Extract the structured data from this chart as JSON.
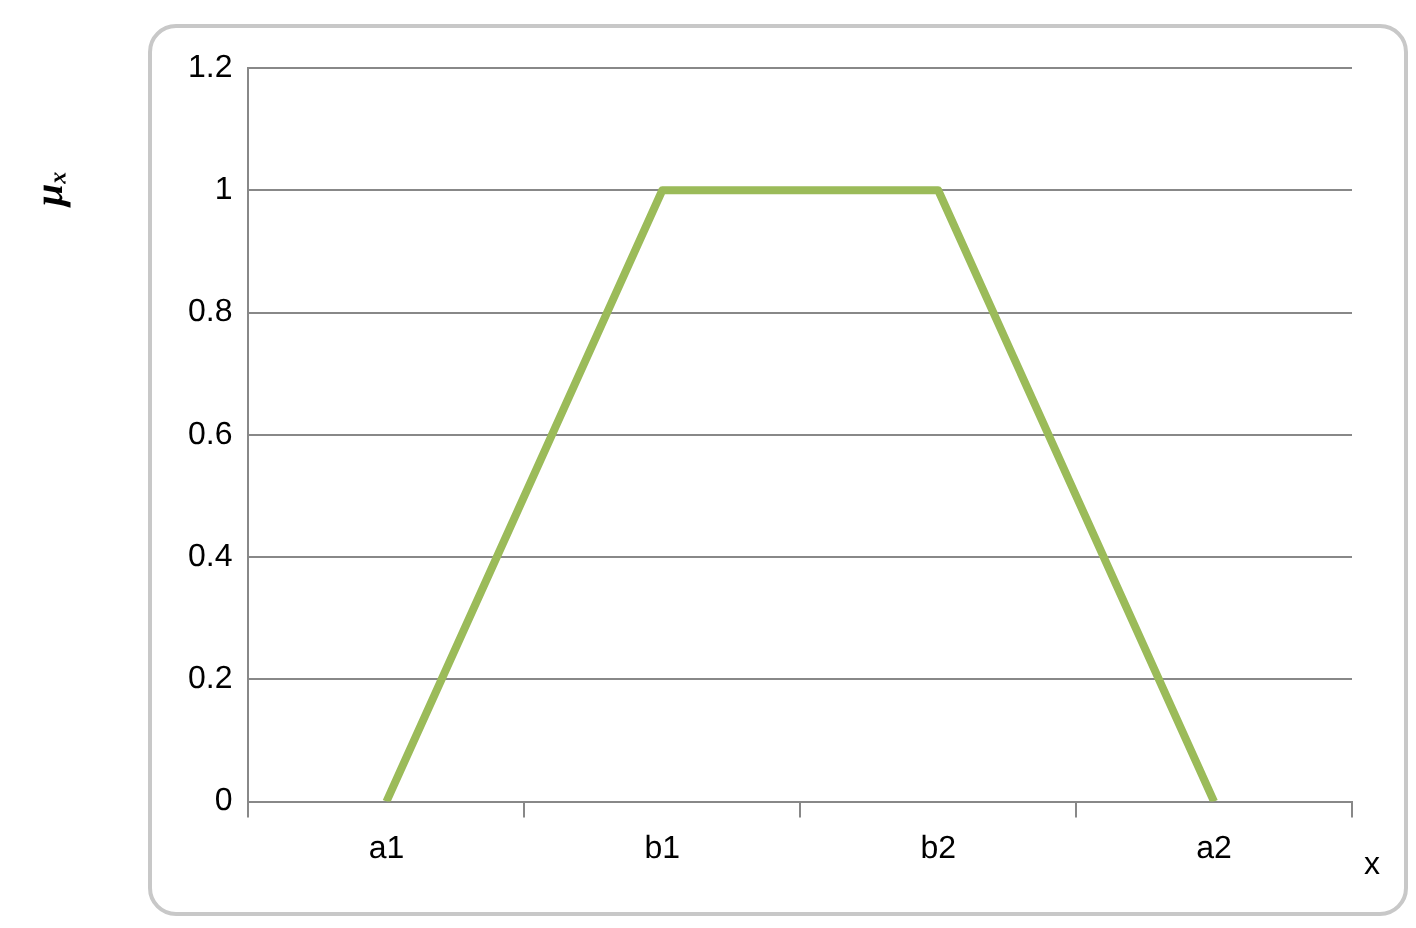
{
  "chart_data": {
    "type": "line",
    "xlabel": "x",
    "ylabel": "μₓ",
    "categories": [
      "a1",
      "b1",
      "b2",
      "a2"
    ],
    "series": [
      {
        "color": "#9bbb59",
        "values": [
          0,
          1,
          1,
          0
        ]
      }
    ],
    "ylim": [
      0,
      1.2
    ],
    "yticks": [
      0,
      0.2,
      0.4,
      0.6,
      0.8,
      1,
      1.2
    ],
    "grid": "y",
    "marker": "none",
    "line_style": "solid",
    "legend": false
  }
}
